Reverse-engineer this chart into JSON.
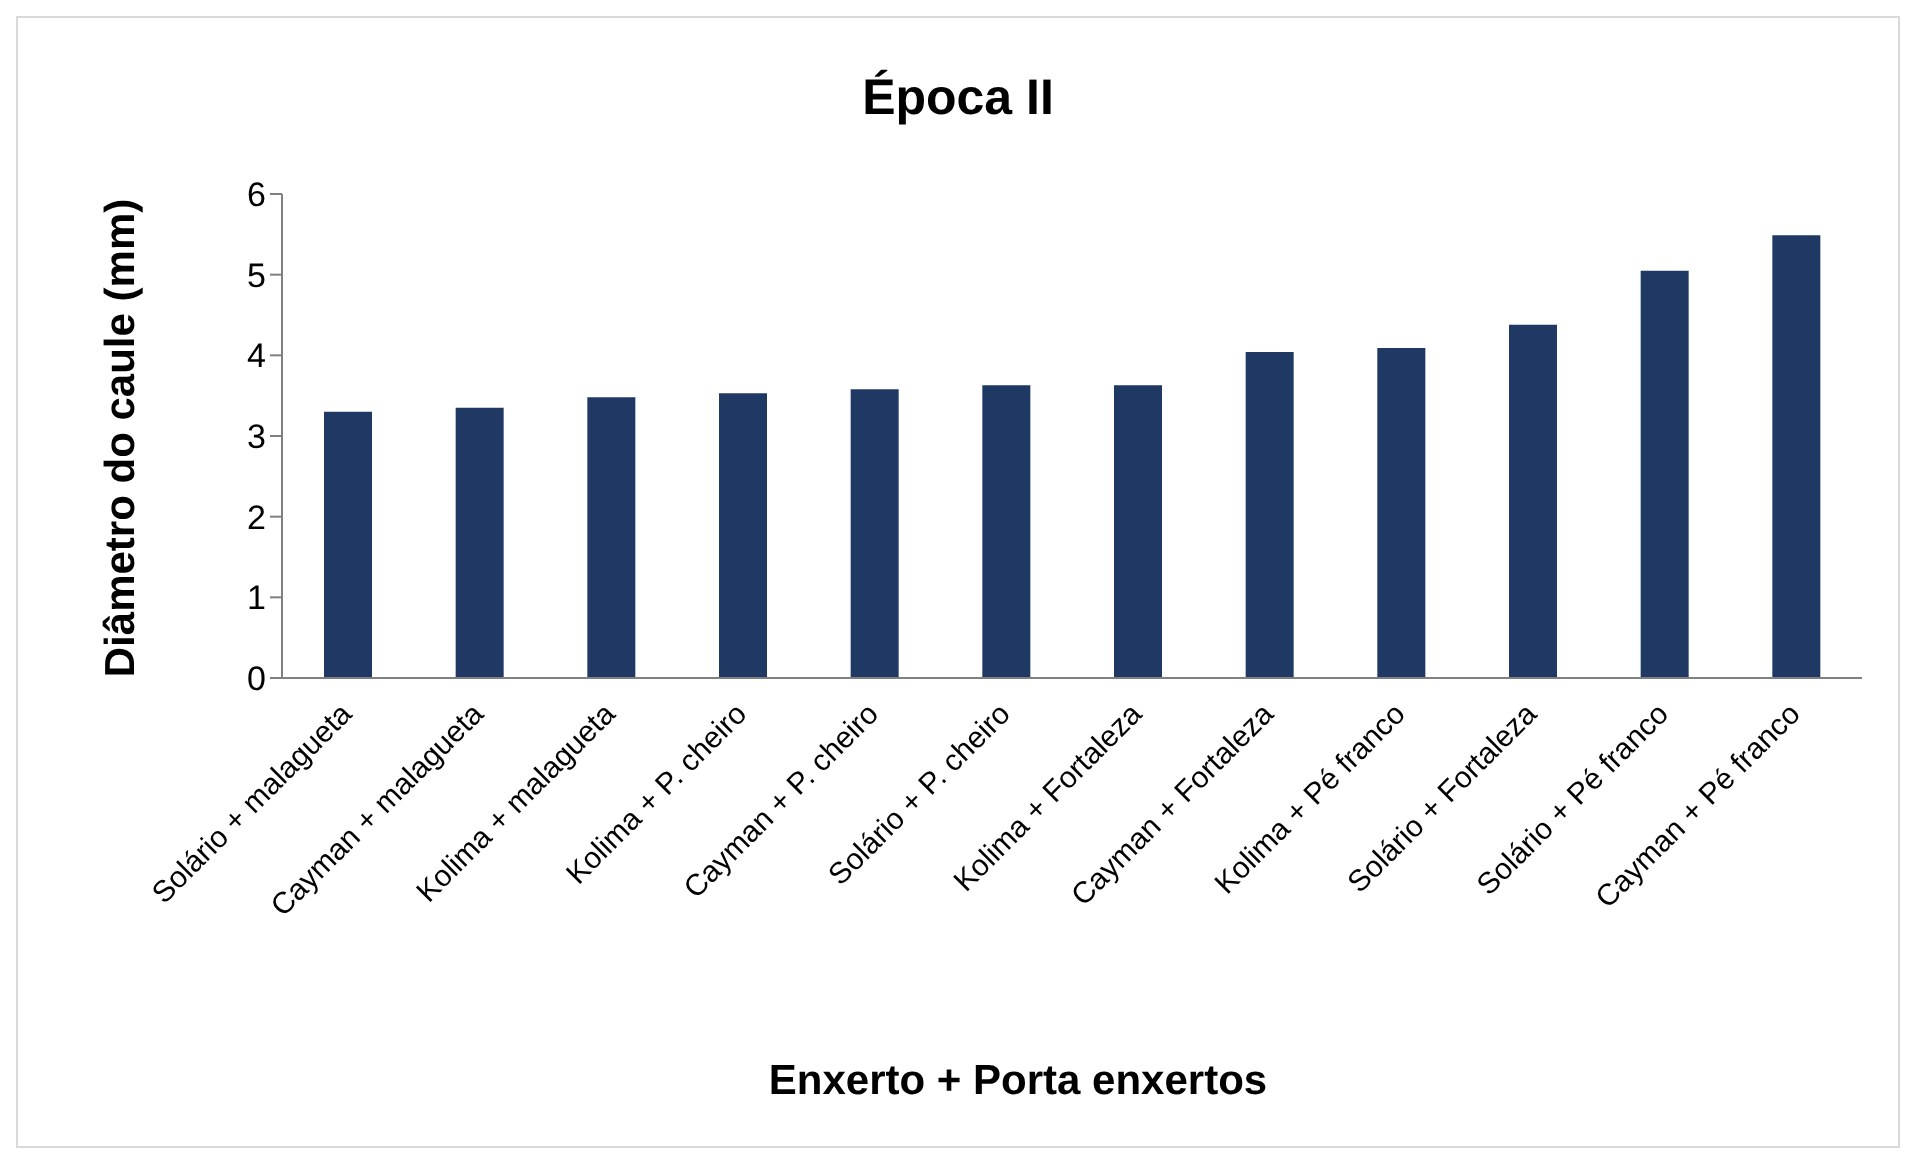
{
  "chart_data": {
    "type": "bar",
    "title": "Época II",
    "xlabel": "Enxerto + Porta enxertos",
    "ylabel": "Diâmetro do caule (mm)",
    "categories": [
      "Solário + malagueta",
      "Cayman + malagueta",
      "Kolima + malagueta",
      "Kolima + P. cheiro",
      "Cayman + P. cheiro",
      "Solário + P. cheiro",
      "Kolima + Fortaleza",
      "Cayman + Fortaleza",
      "Kolima + Pé franco",
      "Solário + Fortaleza",
      "Solário + Pé franco",
      "Cayman + Pé franco"
    ],
    "values": [
      3.3,
      3.35,
      3.48,
      3.53,
      3.58,
      3.63,
      3.63,
      4.04,
      4.09,
      4.38,
      5.05,
      5.49
    ],
    "color": "#1f3864",
    "ylim": [
      0,
      6
    ],
    "yticks": [
      0,
      1,
      2,
      3,
      4,
      5,
      6
    ],
    "grid": false,
    "legend": false
  }
}
